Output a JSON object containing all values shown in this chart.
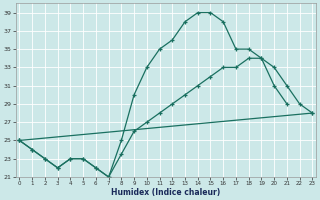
{
  "xlabel": "Humidex (Indice chaleur)",
  "background_color": "#cce8e8",
  "grid_color": "#b8d8d8",
  "line_color": "#1a7060",
  "line1_x": [
    0,
    1,
    2,
    3,
    4,
    5,
    6,
    7,
    8,
    9,
    10,
    11,
    12,
    13,
    14,
    15,
    16,
    17,
    18,
    19,
    20,
    21
  ],
  "line1_y": [
    25,
    24,
    23,
    22,
    23,
    23,
    22,
    21,
    25,
    30,
    33,
    35,
    36,
    38,
    39,
    39,
    38,
    35,
    35,
    34,
    31,
    29
  ],
  "line2_x": [
    0,
    1,
    2,
    3,
    4,
    5,
    6,
    7,
    8,
    9,
    10,
    11,
    12,
    13,
    14,
    15,
    16,
    17,
    18,
    19,
    20,
    21,
    22,
    23
  ],
  "line2_y": [
    25,
    24,
    23,
    22,
    23,
    23,
    22,
    21,
    23.5,
    26,
    27,
    28,
    29,
    30,
    31,
    32,
    33,
    33,
    34,
    34,
    33,
    31,
    29,
    28
  ],
  "line3_x": [
    0,
    23
  ],
  "line3_y": [
    25,
    28
  ],
  "ylim_min": 21,
  "ylim_max": 40,
  "xlim_min": -0.3,
  "xlim_max": 23.3,
  "yticks": [
    21,
    23,
    25,
    27,
    29,
    31,
    33,
    35,
    37,
    39
  ],
  "xticks": [
    0,
    1,
    2,
    3,
    4,
    5,
    6,
    7,
    8,
    9,
    10,
    11,
    12,
    13,
    14,
    15,
    16,
    17,
    18,
    19,
    20,
    21,
    22,
    23
  ]
}
